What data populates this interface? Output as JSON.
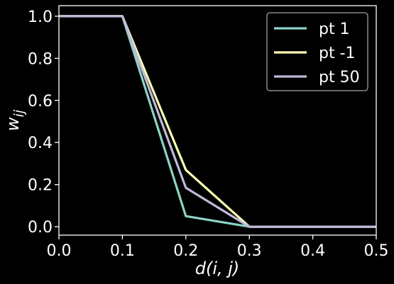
{
  "chart_data": {
    "type": "line",
    "xlabel": "d(i, j)",
    "ylabel": "w",
    "ylabel_subscript": "ij",
    "xlim": [
      0.0,
      0.5
    ],
    "ylim": [
      -0.04,
      1.05
    ],
    "xticks": [
      "0.0",
      "0.1",
      "0.2",
      "0.3",
      "0.4",
      "0.5"
    ],
    "yticks": [
      "0.0",
      "0.2",
      "0.4",
      "0.6",
      "0.8",
      "1.0"
    ],
    "legend_position": "top-right",
    "grid": false,
    "x": [
      0.0,
      0.1,
      0.2,
      0.3,
      0.4,
      0.5
    ],
    "series": [
      {
        "name": "pt 1",
        "color": "#8dd3c7",
        "values": [
          1.0,
          1.0,
          0.05,
          0.0,
          0.0,
          0.0
        ]
      },
      {
        "name": "pt -1",
        "color": "#ffffb3",
        "values": [
          1.0,
          1.0,
          0.27,
          0.0,
          0.0,
          0.0
        ]
      },
      {
        "name": "pt 50",
        "color": "#bebada",
        "values": [
          1.0,
          1.0,
          0.185,
          0.0,
          0.0,
          0.0
        ]
      }
    ]
  }
}
